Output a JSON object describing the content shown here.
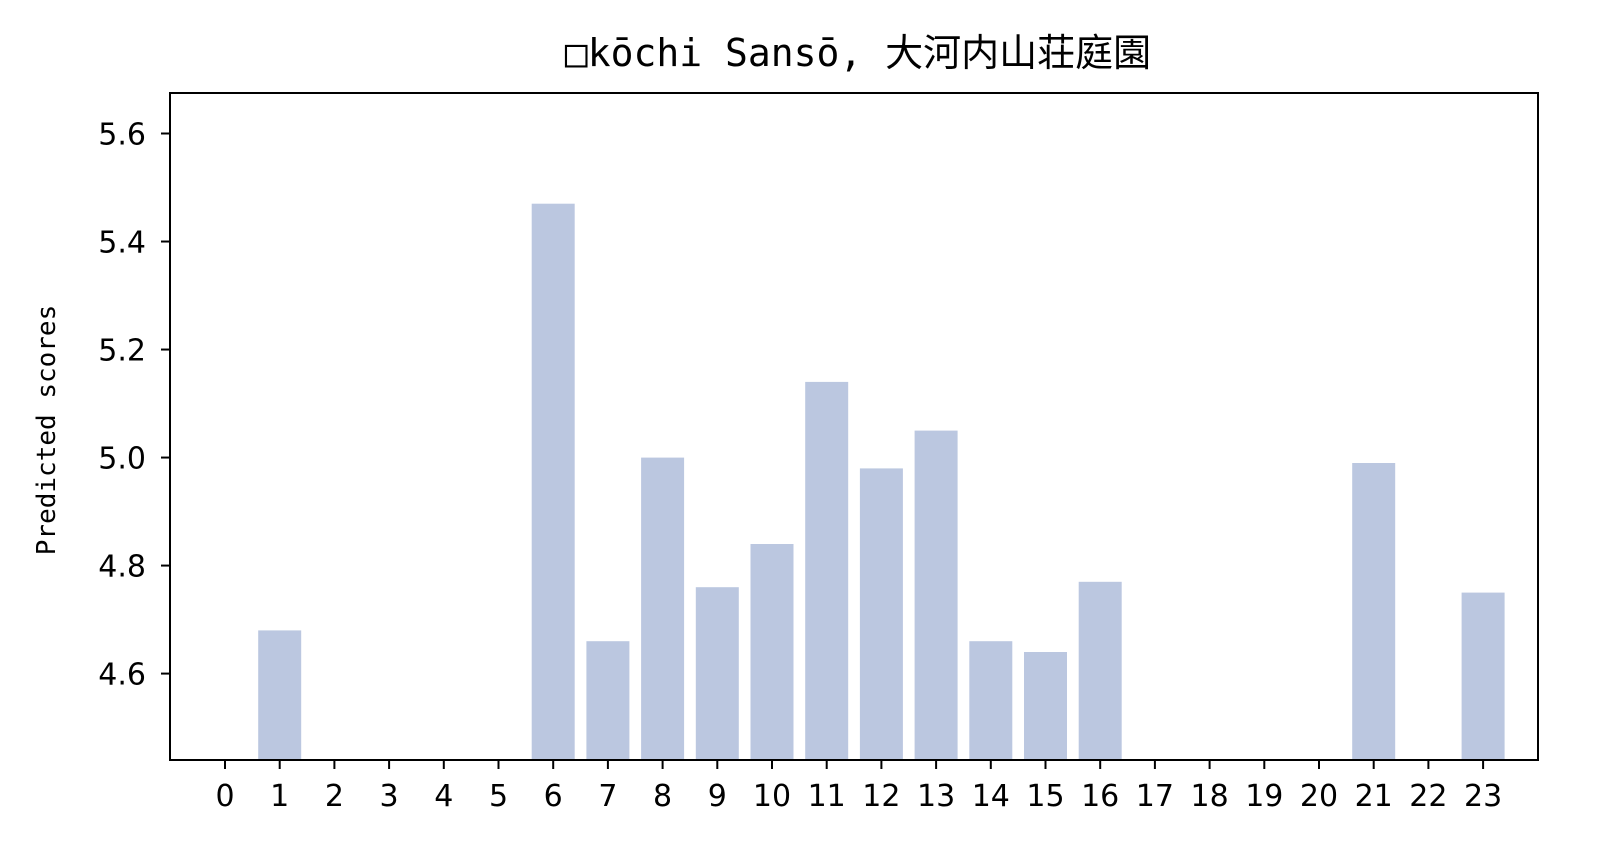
{
  "chart_data": {
    "type": "bar",
    "title": "□kōchi Sansō, 大河内山荘庭園",
    "xlabel": "",
    "ylabel": "Predicted scores",
    "categories": [
      "0",
      "1",
      "2",
      "3",
      "4",
      "5",
      "6",
      "7",
      "8",
      "9",
      "10",
      "11",
      "12",
      "13",
      "14",
      "15",
      "16",
      "17",
      "18",
      "19",
      "20",
      "21",
      "22",
      "23"
    ],
    "values": [
      null,
      4.68,
      null,
      null,
      null,
      null,
      5.47,
      4.66,
      5.0,
      4.76,
      4.84,
      5.14,
      4.98,
      5.05,
      4.66,
      4.64,
      4.77,
      null,
      null,
      null,
      null,
      4.99,
      null,
      4.75
    ],
    "ylim": [
      4.44,
      5.675
    ],
    "yticks": [
      "4.6",
      "4.8",
      "5.0",
      "5.2",
      "5.4",
      "5.6"
    ],
    "bar_color": "#bbc7e0",
    "grid": false,
    "legend": "none"
  }
}
